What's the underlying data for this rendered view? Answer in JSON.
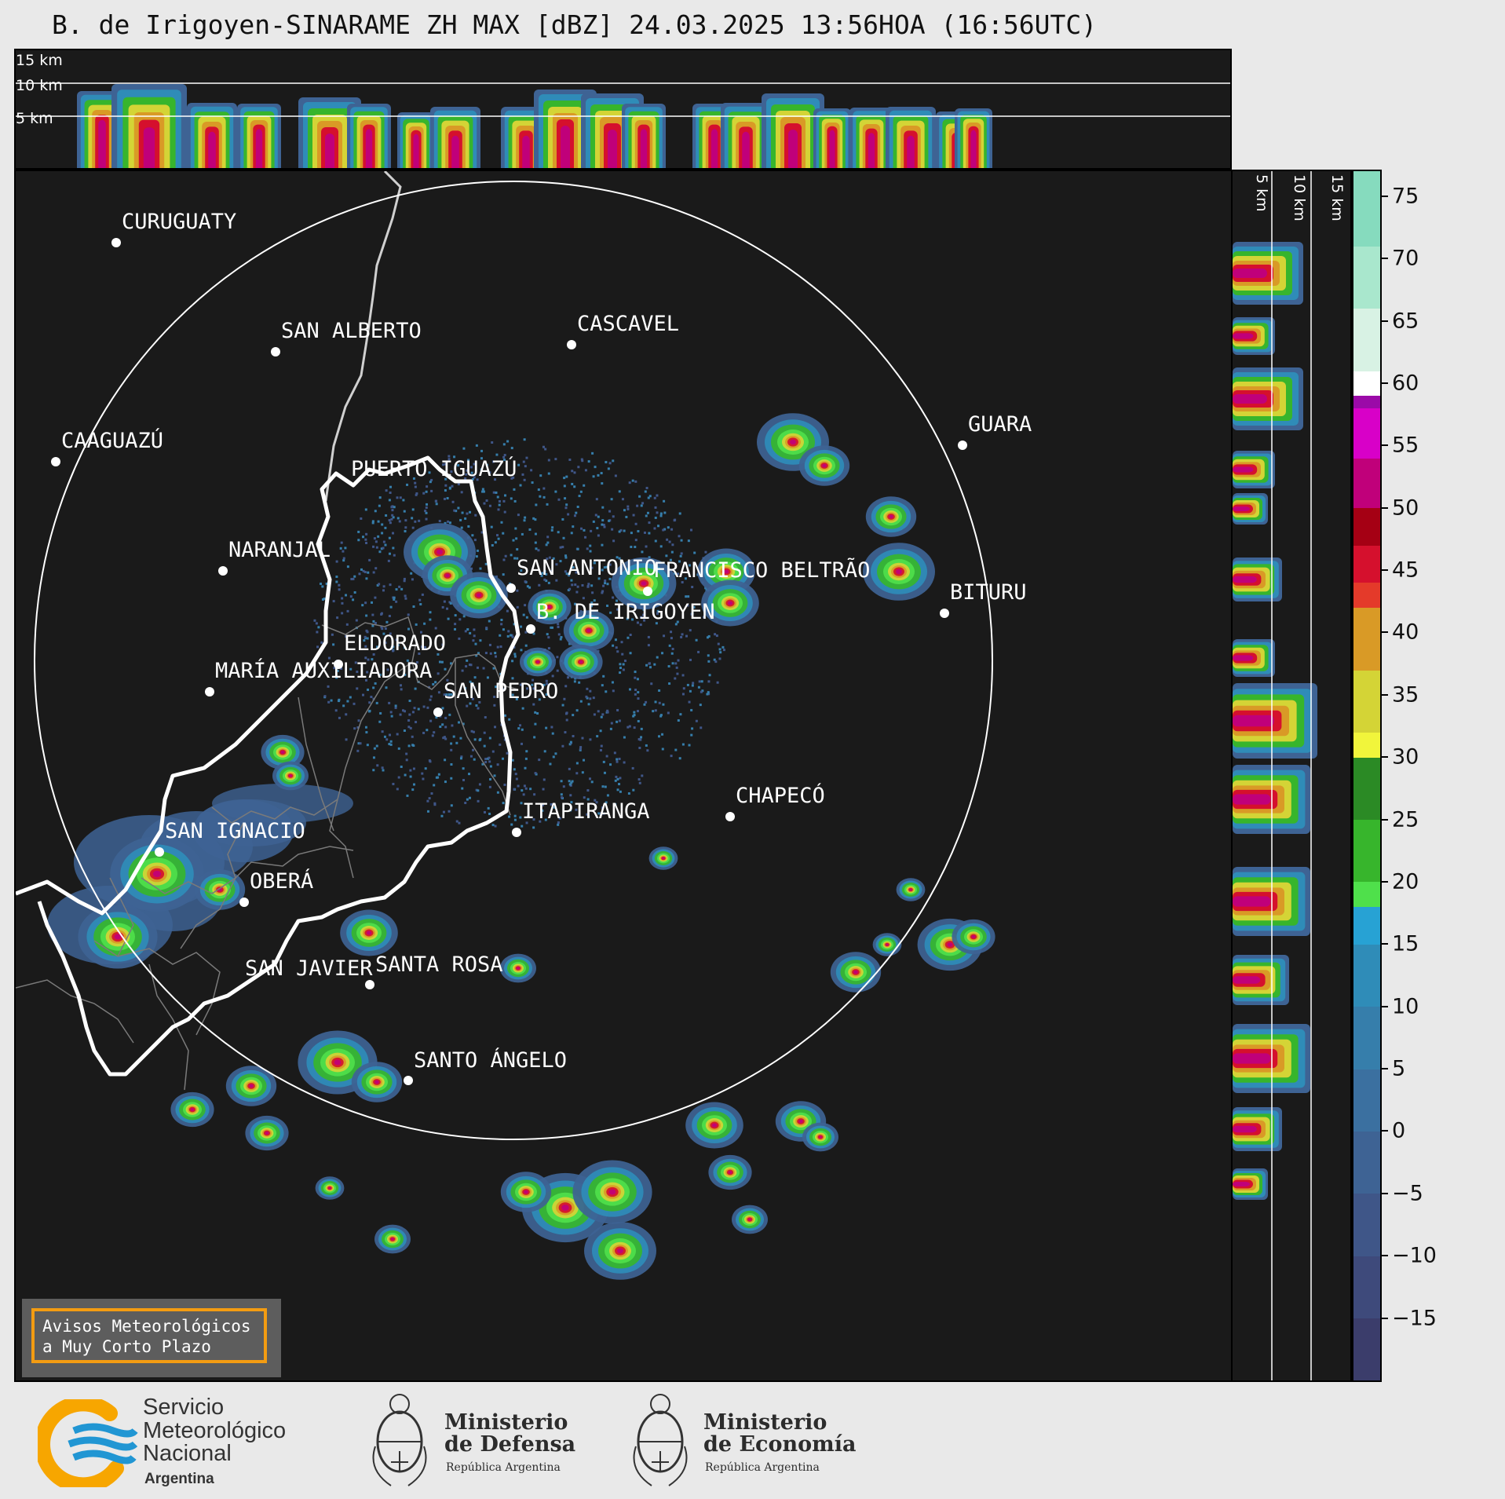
{
  "title": "B. de Irigoyen-SINARAME ZH MAX [dBZ] 24.03.2025 13:56HOA (16:56UTC)",
  "top_panel": {
    "altitude_labels": [
      "15 km",
      "10 km",
      "5 km"
    ]
  },
  "side_panel": {
    "altitude_labels": [
      "5 km",
      "10 km",
      "15 km"
    ]
  },
  "colorbar": {
    "unit": "dBZ",
    "range": [
      -20,
      77
    ],
    "ticks": [
      "75",
      "70",
      "65",
      "60",
      "55",
      "50",
      "45",
      "40",
      "35",
      "30",
      "25",
      "20",
      "15",
      "10",
      "5",
      "0",
      "−5",
      "−10",
      "−15"
    ],
    "tick_values": [
      75,
      70,
      65,
      60,
      55,
      50,
      45,
      40,
      35,
      30,
      25,
      20,
      15,
      10,
      5,
      0,
      -5,
      -10,
      -15
    ],
    "segments": [
      {
        "from": -20,
        "to": -15,
        "color": "#3b3d6b"
      },
      {
        "from": -15,
        "to": -10,
        "color": "#3e4a7b"
      },
      {
        "from": -10,
        "to": -5,
        "color": "#3f5688"
      },
      {
        "from": -5,
        "to": 0,
        "color": "#3e6394"
      },
      {
        "from": 0,
        "to": 5,
        "color": "#3b70a0"
      },
      {
        "from": 5,
        "to": 10,
        "color": "#367eab"
      },
      {
        "from": 10,
        "to": 15,
        "color": "#2f8cb8"
      },
      {
        "from": 15,
        "to": 18,
        "color": "#27a2d4"
      },
      {
        "from": 18,
        "to": 20,
        "color": "#4fe04b"
      },
      {
        "from": 20,
        "to": 25,
        "color": "#37b52c"
      },
      {
        "from": 25,
        "to": 30,
        "color": "#2b8a25"
      },
      {
        "from": 30,
        "to": 32,
        "color": "#f1f53b"
      },
      {
        "from": 32,
        "to": 37,
        "color": "#d4d436"
      },
      {
        "from": 37,
        "to": 42,
        "color": "#d99a26"
      },
      {
        "from": 42,
        "to": 44,
        "color": "#e43a2a"
      },
      {
        "from": 44,
        "to": 47,
        "color": "#d5102d"
      },
      {
        "from": 47,
        "to": 50,
        "color": "#a50014"
      },
      {
        "from": 50,
        "to": 54,
        "color": "#c0007a"
      },
      {
        "from": 54,
        "to": 58,
        "color": "#d800c8"
      },
      {
        "from": 58,
        "to": 59,
        "color": "#9b0aa8"
      },
      {
        "from": 59,
        "to": 61,
        "color": "#ffffff"
      },
      {
        "from": 61,
        "to": 66,
        "color": "#d8f2e4"
      },
      {
        "from": 66,
        "to": 71,
        "color": "#a9e7cd"
      },
      {
        "from": 71,
        "to": 77,
        "color": "#86dbbe"
      }
    ]
  },
  "map": {
    "cities": [
      {
        "id": "curuguaty",
        "name": "CURUGUATY",
        "dot": [
          128,
          91
        ],
        "label": [
          135,
          73
        ]
      },
      {
        "id": "san-alberto",
        "name": "SAN ALBERTO",
        "dot": [
          331,
          230
        ],
        "label": [
          338,
          212
        ]
      },
      {
        "id": "cascavel",
        "name": "CASCAVEL",
        "dot": [
          708,
          221
        ],
        "label": [
          715,
          203
        ]
      },
      {
        "id": "caaguazu",
        "name": "CAAGUAZÚ",
        "dot": [
          51,
          370
        ],
        "label": [
          58,
          352
        ]
      },
      {
        "id": "guara",
        "name": "GUARA",
        "dot": [
          1206,
          349
        ],
        "label": [
          1213,
          331
        ]
      },
      {
        "id": "puerto-iguazu",
        "name": "PUERTO IGUAZÚ",
        "dot": null,
        "label": [
          427,
          388
        ]
      },
      {
        "id": "naranjal",
        "name": "NARANJAL",
        "dot": [
          264,
          509
        ],
        "label": [
          271,
          491
        ]
      },
      {
        "id": "san-antonio",
        "name": "SAN ANTONIO",
        "dot": [
          631,
          531
        ],
        "label": [
          638,
          514
        ]
      },
      {
        "id": "francisco-beltrao",
        "name": "FRANCISCO BELTRÃO",
        "dot": [
          805,
          535
        ],
        "label": [
          812,
          517
        ]
      },
      {
        "id": "bituru",
        "name": "BITURU",
        "dot": [
          1183,
          563
        ],
        "label": [
          1190,
          545
        ]
      },
      {
        "id": "b-de-irigoyen",
        "name": "B. DE IRIGOYEN",
        "dot": [
          656,
          583
        ],
        "label": [
          663,
          570
        ]
      },
      {
        "id": "eldorado",
        "name": "ELDORADO",
        "dot": [
          411,
          628
        ],
        "label": [
          418,
          610
        ]
      },
      {
        "id": "maria-auxiliadora",
        "name": "MARÍA AUXILIADORA",
        "dot": [
          247,
          663
        ],
        "label": [
          254,
          645
        ]
      },
      {
        "id": "san-pedro",
        "name": "SAN PEDRO",
        "dot": [
          538,
          689
        ],
        "label": [
          545,
          671
        ]
      },
      {
        "id": "chapeco",
        "name": "CHAPECÓ",
        "dot": [
          910,
          822
        ],
        "label": [
          917,
          804
        ]
      },
      {
        "id": "itapiranga",
        "name": "ITAPIRANGA",
        "dot": [
          638,
          842
        ],
        "label": [
          645,
          824
        ]
      },
      {
        "id": "san-ignacio",
        "name": "SAN IGNACIO",
        "dot": [
          183,
          867
        ],
        "label": [
          190,
          849
        ]
      },
      {
        "id": "obera",
        "name": "OBERÁ",
        "dot": [
          291,
          931
        ],
        "label": [
          298,
          913
        ]
      },
      {
        "id": "san-javier",
        "name": "SAN JAVIER",
        "dot": null,
        "label": [
          292,
          1024
        ]
      },
      {
        "id": "santa-rosa",
        "name": "SANTA ROSA",
        "dot": [
          451,
          1036
        ],
        "label": [
          458,
          1019
        ]
      },
      {
        "id": "santo-angelo",
        "name": "SANTO ÁNGELO",
        "dot": [
          500,
          1158
        ],
        "label": [
          507,
          1141
        ]
      }
    ]
  },
  "avisos": {
    "line1": "Avisos Meteorológicos",
    "line2": "a Muy Corto Plazo"
  },
  "footer": {
    "smn_line1": "Servicio",
    "smn_line2": "Meteorológico",
    "smn_line3": "Nacional",
    "smn_country": "Argentina",
    "defensa_line1": "Ministerio",
    "defensa_line2": "de Defensa",
    "defensa_sub": "República Argentina",
    "economia_line1": "Ministerio",
    "economia_line2": "de Economía",
    "economia_sub": "República Argentina"
  },
  "colors": {
    "background": "#1a1a1a",
    "border_line": "#ffffff",
    "river": "#d0d0d0",
    "province_lines": "#7a7a7a",
    "avisos_border": "#f39c12",
    "smn_blue": "#2196d3",
    "smn_orange": "#f7a600"
  }
}
